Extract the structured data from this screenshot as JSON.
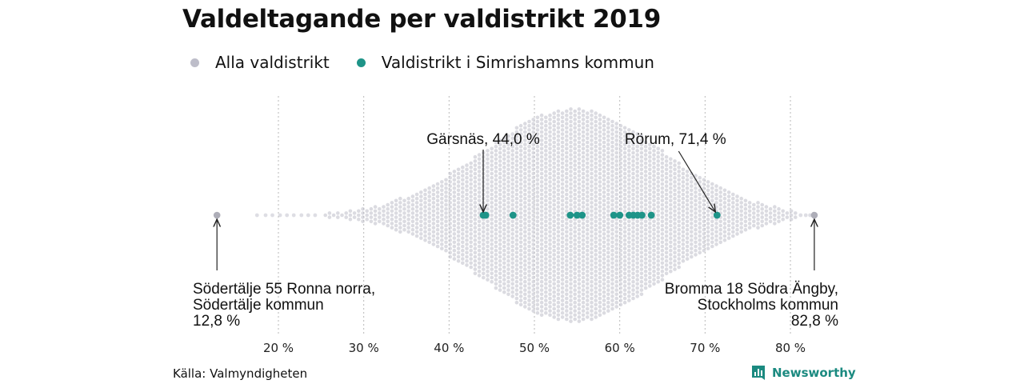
{
  "chart_data": {
    "type": "scatter",
    "title": "Valdeltagande per valdistrikt 2019",
    "xlabel": "",
    "ylabel": "",
    "xlim": [
      10,
      85
    ],
    "x_ticks": [
      20,
      30,
      40,
      50,
      60,
      70,
      80
    ],
    "x_tick_labels": [
      "20 %",
      "30 %",
      "40 %",
      "50 %",
      "60 %",
      "70 %",
      "80 %"
    ],
    "grid": "vertical dotted",
    "legend_position": "top",
    "series": [
      {
        "name": "Alla valdistrikt",
        "color": "#bdbdc9",
        "distribution": {
          "min": 12.8,
          "max": 82.8,
          "peak": 54.5
        }
      },
      {
        "name": "Valdistrikt i Simrishamns kommun",
        "color": "#1e9488",
        "values": [
          44.0,
          44.3,
          47.5,
          54.2,
          55.0,
          55.6,
          59.3,
          60.0,
          61.1,
          61.6,
          62.1,
          62.6,
          63.7,
          71.4
        ]
      }
    ],
    "annotations": [
      {
        "label": "Gärsnäs, 44,0 %",
        "x": 44.0
      },
      {
        "label": "Rörum, 71,4 %",
        "x": 71.4
      },
      {
        "lines": [
          "Södertälje 55 Ronna norra,",
          "Södertälje kommun",
          "12,8 %"
        ],
        "x": 12.8
      },
      {
        "lines": [
          "Bromma 18 Södra Ängby,",
          "Stockholms kommun",
          "82,8 %"
        ],
        "x": 82.8
      }
    ]
  },
  "footer": {
    "source": "Källa: Valmyndigheten",
    "brand": "Newsworthy"
  }
}
